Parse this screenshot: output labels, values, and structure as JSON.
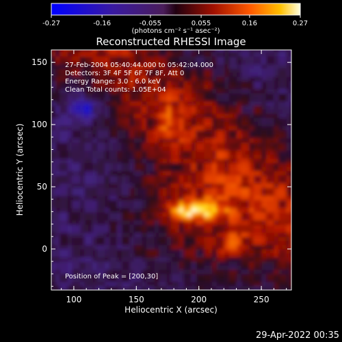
{
  "chart_data": {
    "type": "heatmap",
    "title": "Reconstructed RHESSI Image",
    "xlabel": "Heliocentric X (arcsec)",
    "ylabel": "Heliocentric Y (arcsec)",
    "xlim": [
      82,
      274
    ],
    "ylim": [
      -33,
      160
    ],
    "x_ticks": [
      "100",
      "150",
      "200",
      "250"
    ],
    "y_ticks": [
      "0",
      "50",
      "100",
      "150"
    ],
    "colorbar": {
      "range": [
        -0.27,
        0.27
      ],
      "ticks": [
        "-0.27",
        "-0.16",
        "-0.055",
        "0.055",
        "0.16",
        "0.27"
      ],
      "unit_label": "(photons cm⁻² s⁻¹ asec⁻²)"
    },
    "annotations": [
      "27-Feb-2004 05:40:44.000 to 05:42:04.000",
      "Detectors: 3F 4F 5F 6F 7F 8F, Att 0",
      "Energy Range: 3.0 - 6.0 keV",
      "Clean     Total counts: 1.05E+04"
    ],
    "peak_label": "Position of Peak = [200,30]",
    "peak": [
      200,
      30
    ],
    "grid": false,
    "features": [
      {
        "name": "main source",
        "x": 200,
        "y": 30,
        "value": 0.27
      },
      {
        "name": "negative region",
        "x": 106,
        "y": 112,
        "value": -0.2
      }
    ]
  },
  "timestamp": "29-Apr-2022 00:35"
}
